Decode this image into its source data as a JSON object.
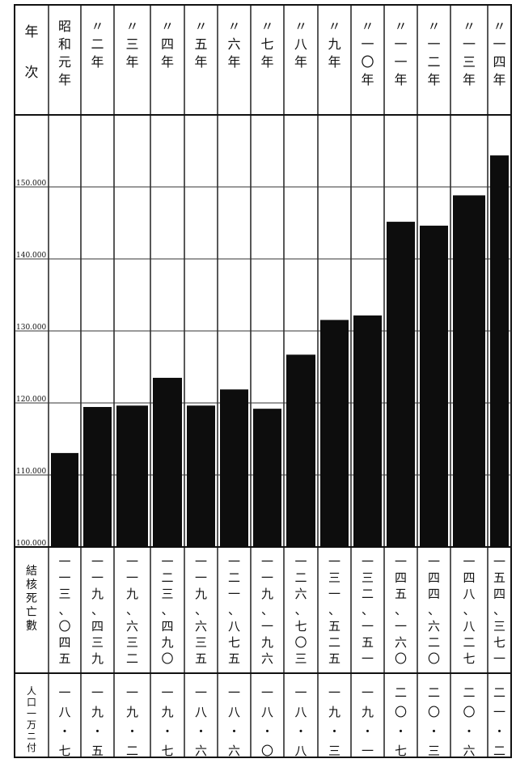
{
  "chart_data": {
    "type": "bar",
    "title": "",
    "xlabel": "",
    "ylabel": "",
    "ylim": [
      100000,
      160000
    ],
    "yticks": [
      100000,
      110000,
      120000,
      130000,
      140000,
      150000
    ],
    "ytick_labels": [
      "100.000",
      "110.000",
      "120.000",
      "130.000",
      "140.000",
      "150.000"
    ],
    "header_label": "年次",
    "row_labels": {
      "deaths": "結核死亡數",
      "rate": "人口一万ニ付"
    },
    "categories": [
      "昭和元年",
      "〃二年",
      "〃三年",
      "〃四年",
      "〃五年",
      "〃六年",
      "〃七年",
      "〃八年",
      "〃九年",
      "〃一〇年",
      "〃一一年",
      "〃一二年",
      "〃一三年",
      "〃一四年"
    ],
    "values": [
      113045,
      119439,
      119632,
      123490,
      119635,
      121875,
      119196,
      126703,
      131525,
      132151,
      145160,
      144620,
      148827,
      154371
    ],
    "deaths_text": [
      "一一三、〇四五",
      "一一九、四三九",
      "一一九、六三二",
      "一二三、四九〇",
      "一一九、六三五",
      "一二一、八七五",
      "一一九、一九六",
      "一二六、七〇三",
      "一三一、五二五",
      "一三二、一五一",
      "一四五、一六〇",
      "一四四、六二〇",
      "一四八、八二七",
      "一五四、三七一"
    ],
    "rate_text": [
      "一八・七",
      "一九・五",
      "一九・二",
      "一九・七",
      "一八・六",
      "一八・六",
      "一八・〇",
      "一八・八",
      "一九・三",
      "一九・一",
      "二〇・七",
      "二〇・三",
      "二〇・六",
      "二一・二"
    ],
    "bar_color": "#0d0d0d",
    "grid": true
  }
}
